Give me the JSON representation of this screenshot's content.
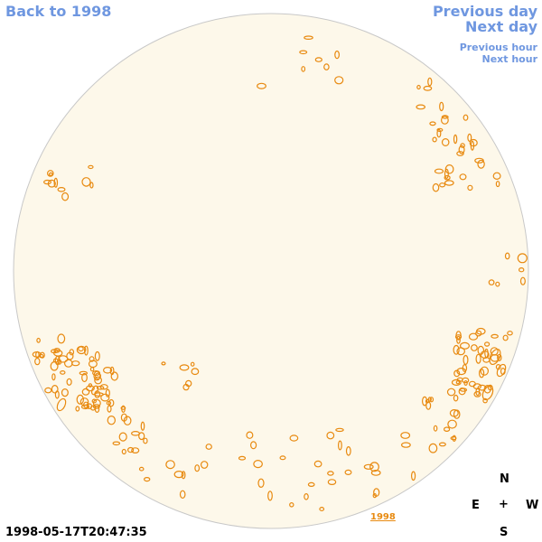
{
  "nav": {
    "back_label": "Back to 1998",
    "previous_day_label": "Previous day",
    "next_day_label": "Next day",
    "previous_hour_label": "Previous hour",
    "next_hour_label": "Next hour"
  },
  "disk": {
    "fill_color": "#fdf8ea",
    "stroke_color": "#c8c8c8",
    "contour_color": "#e88a10",
    "year_link_label": "1998"
  },
  "timestamp": "1998-05-17T20:47:35",
  "compass": {
    "north": "N",
    "east": "E",
    "center": "+",
    "west": "W",
    "south": "S"
  },
  "icons": {
    "compass": "compass-rose"
  }
}
